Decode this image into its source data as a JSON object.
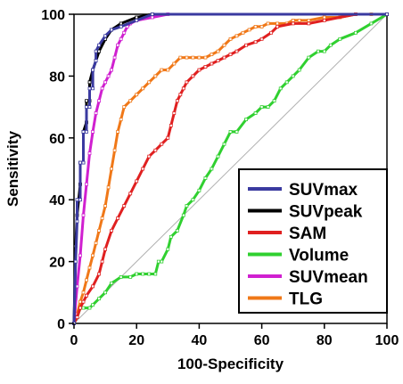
{
  "chart_data": {
    "type": "line",
    "title": "",
    "xlabel": "100-Specificity",
    "ylabel": "Sensitivity",
    "xlim": [
      0,
      100
    ],
    "ylim": [
      0,
      100
    ],
    "xticks": [
      0,
      20,
      40,
      60,
      80,
      100
    ],
    "yticks": [
      0,
      20,
      40,
      60,
      80,
      100
    ],
    "xtick_labels": [
      "0",
      "20",
      "40",
      "60",
      "80",
      "100"
    ],
    "ytick_labels": [
      "0",
      "20",
      "40",
      "60",
      "80",
      "100"
    ],
    "grid": false,
    "legend_position": "bottom-right",
    "reference_line": {
      "x": [
        0,
        100
      ],
      "y": [
        0,
        100
      ],
      "color": "#b0b0b0"
    },
    "series": [
      {
        "name": "SUVmax",
        "color": "#3a3aa0",
        "x": [
          0,
          0.5,
          1,
          1,
          2,
          2,
          3,
          3,
          4,
          4,
          5,
          5,
          6,
          6,
          7,
          7,
          8,
          10,
          12,
          15,
          20,
          25,
          100
        ],
        "y": [
          0,
          20,
          33,
          40,
          40,
          52,
          52,
          62,
          62,
          70,
          70,
          76,
          76,
          82,
          85,
          88,
          90,
          93,
          95,
          96,
          98,
          100,
          100
        ]
      },
      {
        "name": "SUVpeak",
        "color": "#000000",
        "x": [
          0,
          0.5,
          1,
          2,
          2,
          3,
          3,
          4,
          4,
          5,
          5,
          6,
          7,
          8,
          10,
          12,
          15,
          20,
          25,
          100
        ],
        "y": [
          0,
          25,
          35,
          45,
          52,
          52,
          62,
          65,
          72,
          72,
          78,
          82,
          85,
          88,
          92,
          95,
          97,
          99,
          100,
          100
        ]
      },
      {
        "name": "SAM",
        "color": "#e02020",
        "x": [
          0,
          1,
          2,
          3,
          4,
          6,
          8,
          9,
          10,
          12,
          14,
          16,
          18,
          20,
          22,
          24,
          26,
          28,
          30,
          31,
          32,
          33,
          34,
          35,
          36,
          38,
          40,
          42,
          44,
          46,
          48,
          50,
          52,
          55,
          58,
          60,
          63,
          65,
          70,
          75,
          80,
          90,
          100
        ],
        "y": [
          0,
          2,
          5,
          7,
          9,
          12,
          16,
          20,
          24,
          30,
          34,
          38,
          42,
          46,
          50,
          54,
          56,
          58,
          60,
          64,
          68,
          72,
          74,
          76,
          78,
          80,
          82,
          83,
          84,
          85,
          86,
          87,
          88,
          90,
          91,
          92,
          94,
          96,
          97,
          97,
          98,
          100,
          100
        ]
      },
      {
        "name": "Volume",
        "color": "#30d030",
        "x": [
          0,
          1,
          2,
          3,
          5,
          6,
          8,
          10,
          12,
          15,
          18,
          20,
          22,
          24,
          26,
          27,
          28,
          30,
          31,
          33,
          35,
          36,
          38,
          40,
          42,
          44,
          46,
          48,
          50,
          52,
          55,
          58,
          60,
          62,
          64,
          66,
          68,
          70,
          72,
          75,
          78,
          80,
          82,
          85,
          90,
          95,
          100
        ],
        "y": [
          0,
          2,
          5,
          5,
          5,
          6,
          8,
          10,
          13,
          15,
          15,
          16,
          16,
          16,
          16,
          20,
          20,
          24,
          28,
          30,
          35,
          38,
          40,
          43,
          47,
          50,
          54,
          58,
          62,
          62,
          66,
          68,
          70,
          70,
          72,
          76,
          78,
          80,
          82,
          86,
          88,
          88,
          90,
          92,
          94,
          97,
          100
        ]
      },
      {
        "name": "SUVmean",
        "color": "#d020d0",
        "x": [
          0,
          1,
          2,
          3,
          4,
          5,
          6,
          7,
          8,
          9,
          10,
          11,
          12,
          13,
          14,
          15,
          16,
          17,
          18,
          20,
          25,
          30,
          100
        ],
        "y": [
          0,
          12,
          22,
          35,
          45,
          55,
          62,
          68,
          72,
          76,
          78,
          80,
          82,
          86,
          90,
          92,
          94,
          96,
          97,
          98,
          99,
          100,
          100
        ]
      },
      {
        "name": "TLG",
        "color": "#f07818",
        "x": [
          0,
          1,
          2,
          3,
          4,
          5,
          6,
          7,
          8,
          9,
          10,
          11,
          12,
          13,
          14,
          15,
          16,
          18,
          20,
          22,
          24,
          26,
          28,
          30,
          32,
          34,
          36,
          38,
          40,
          42,
          44,
          46,
          48,
          50,
          52,
          54,
          56,
          58,
          60,
          62,
          65,
          68,
          70,
          72,
          75,
          80,
          85,
          90,
          95,
          100
        ],
        "y": [
          0,
          3,
          7,
          10,
          14,
          18,
          22,
          26,
          30,
          34,
          38,
          44,
          50,
          56,
          62,
          66,
          70,
          72,
          74,
          76,
          78,
          80,
          82,
          82,
          84,
          86,
          86,
          86,
          86,
          86,
          87,
          88,
          90,
          92,
          93,
          94,
          95,
          96,
          96,
          97,
          97,
          97,
          98,
          98,
          98,
          99,
          99,
          100,
          100,
          100
        ]
      }
    ]
  }
}
